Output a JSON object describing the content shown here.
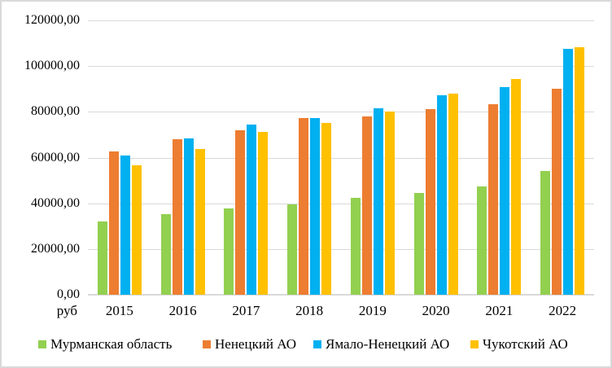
{
  "chart_data": {
    "type": "bar",
    "title": "",
    "unit_label": "руб",
    "categories": [
      "2015",
      "2016",
      "2017",
      "2018",
      "2019",
      "2020",
      "2021",
      "2022"
    ],
    "series": [
      {
        "name": "Мурманская область",
        "color": "#92d050",
        "values": [
          32100,
          35300,
          37600,
          39500,
          42300,
          44600,
          47300,
          54000
        ]
      },
      {
        "name": "Ненецкий АО",
        "color": "#ed7d31",
        "values": [
          62500,
          68000,
          71800,
          77200,
          78000,
          81300,
          83200,
          90000
        ]
      },
      {
        "name": "Ямало-Ненецкий АО",
        "color": "#00b0f0",
        "values": [
          61000,
          68500,
          74500,
          77400,
          81700,
          87100,
          90700,
          107400
        ]
      },
      {
        "name": "Чукотский АО",
        "color": "#ffc000",
        "values": [
          56700,
          63900,
          71100,
          75000,
          80300,
          87900,
          94200,
          108100
        ]
      }
    ],
    "ylim": [
      0,
      120000
    ],
    "ytick_step": 20000,
    "ytick_labels": [
      "0,00",
      "20000,00",
      "40000,00",
      "60000,00",
      "80000,00",
      "100000,00",
      "120000,00"
    ],
    "grid": true,
    "legend_position": "bottom"
  },
  "layout_hints": {
    "gridline_color": "#d9d9d9",
    "background_color": "#ffffff",
    "border_color": "#d9d9d9"
  }
}
